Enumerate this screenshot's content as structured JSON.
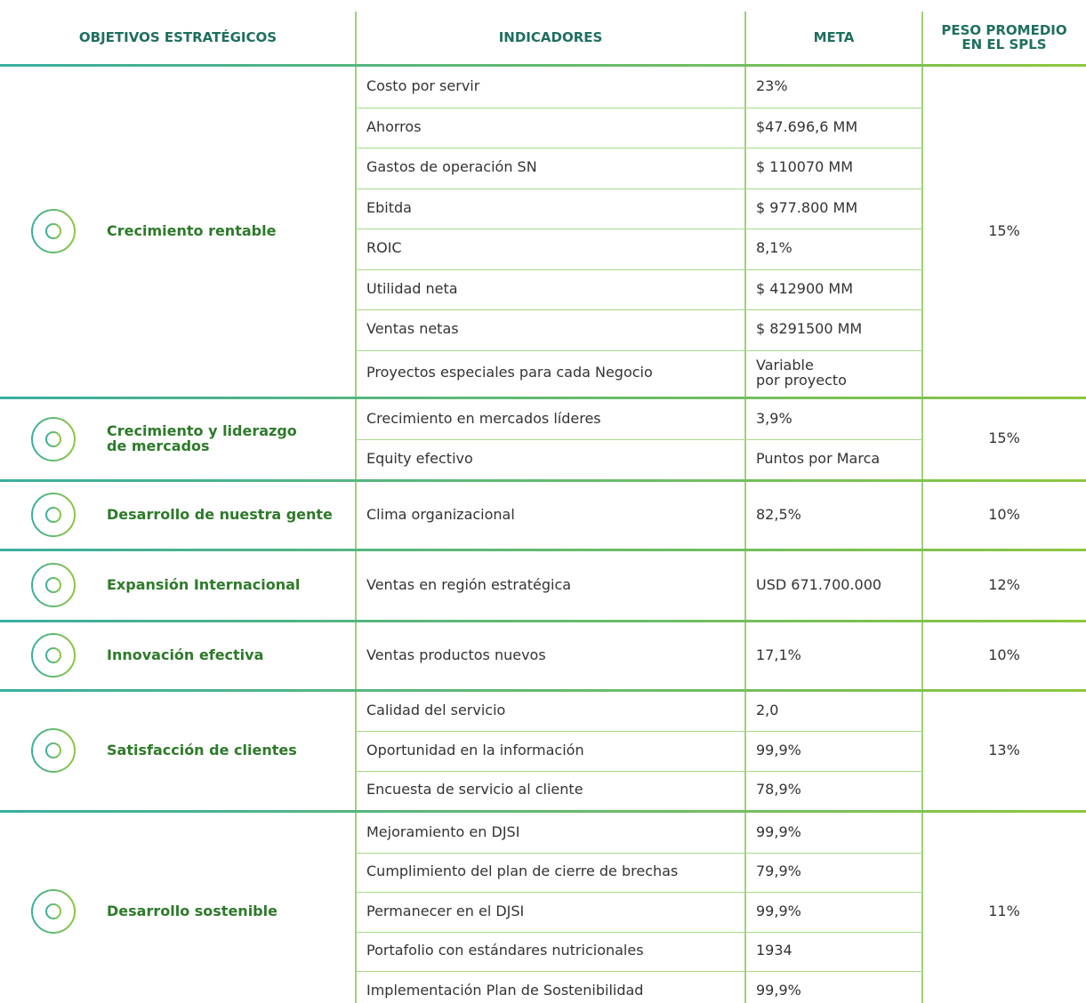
{
  "header": {
    "columns": [
      "OBJETIVOS ESTRATÉGICOS",
      "INDICADORES",
      "META",
      "PESO PROMEDIO\nEN EL SPLS"
    ]
  },
  "groups": [
    {
      "objective": "Crecimiento rentable",
      "weight": "15%",
      "indicators": [
        {
          "name": "Costo por servir",
          "meta": "23%"
        },
        {
          "name": "Ahorros",
          "meta": "$47.696,6 MM"
        },
        {
          "name": "Gastos de operación SN",
          "meta": "$ 110070 MM"
        },
        {
          "name": "Ebitda",
          "meta": "$ 977.800 MM"
        },
        {
          "name": "ROIC",
          "meta": "8,1%"
        },
        {
          "name": "Utilidad neta",
          "meta": "$ 412900 MM"
        },
        {
          "name": "Ventas netas",
          "meta": "$ 8291500 MM"
        },
        {
          "name": "Proyectos especiales para cada Negocio",
          "meta": "Variable\npor proyecto"
        }
      ]
    },
    {
      "objective": "Crecimiento y liderazgo\nde mercados",
      "weight": "15%",
      "indicators": [
        {
          "name": "Crecimiento en mercados líderes",
          "meta": "3,9%"
        },
        {
          "name": "Equity efectivo",
          "meta": "Puntos por Marca"
        }
      ]
    },
    {
      "objective": "Desarrollo de nuestra gente",
      "weight": "10%",
      "indicators": [
        {
          "name": "Clima organizacional",
          "meta": "82,5%"
        }
      ]
    },
    {
      "objective": "Expansión Internacional",
      "weight": "12%",
      "indicators": [
        {
          "name": "Ventas en región estratégica",
          "meta": "USD 671.700.000"
        }
      ]
    },
    {
      "objective": "Innovación efectiva",
      "weight": "10%",
      "indicators": [
        {
          "name": "Ventas productos nuevos",
          "meta": "17,1%"
        }
      ]
    },
    {
      "objective": "Satisfacción de clientes",
      "weight": "13%",
      "indicators": [
        {
          "name": "Calidad del servicio",
          "meta": "2,0"
        },
        {
          "name": "Oportunidad en la información",
          "meta": "99,9%"
        },
        {
          "name": "Encuesta de servicio al cliente",
          "meta": "78,9%"
        }
      ]
    },
    {
      "objective": "Desarrollo sostenible",
      "weight": "11%",
      "indicators": [
        {
          "name": "Mejoramiento en DJSI",
          "meta": "99,9%"
        },
        {
          "name": "Cumplimiento del plan de cierre de brechas",
          "meta": "79,9%"
        },
        {
          "name": "Permanecer en el DJSI",
          "meta": "99,9%"
        },
        {
          "name": "Portafolio con estándares nutricionales",
          "meta": "1934"
        },
        {
          "name": "Implementación Plan de Sostenibilidad",
          "meta": "99,9%"
        }
      ]
    }
  ]
}
